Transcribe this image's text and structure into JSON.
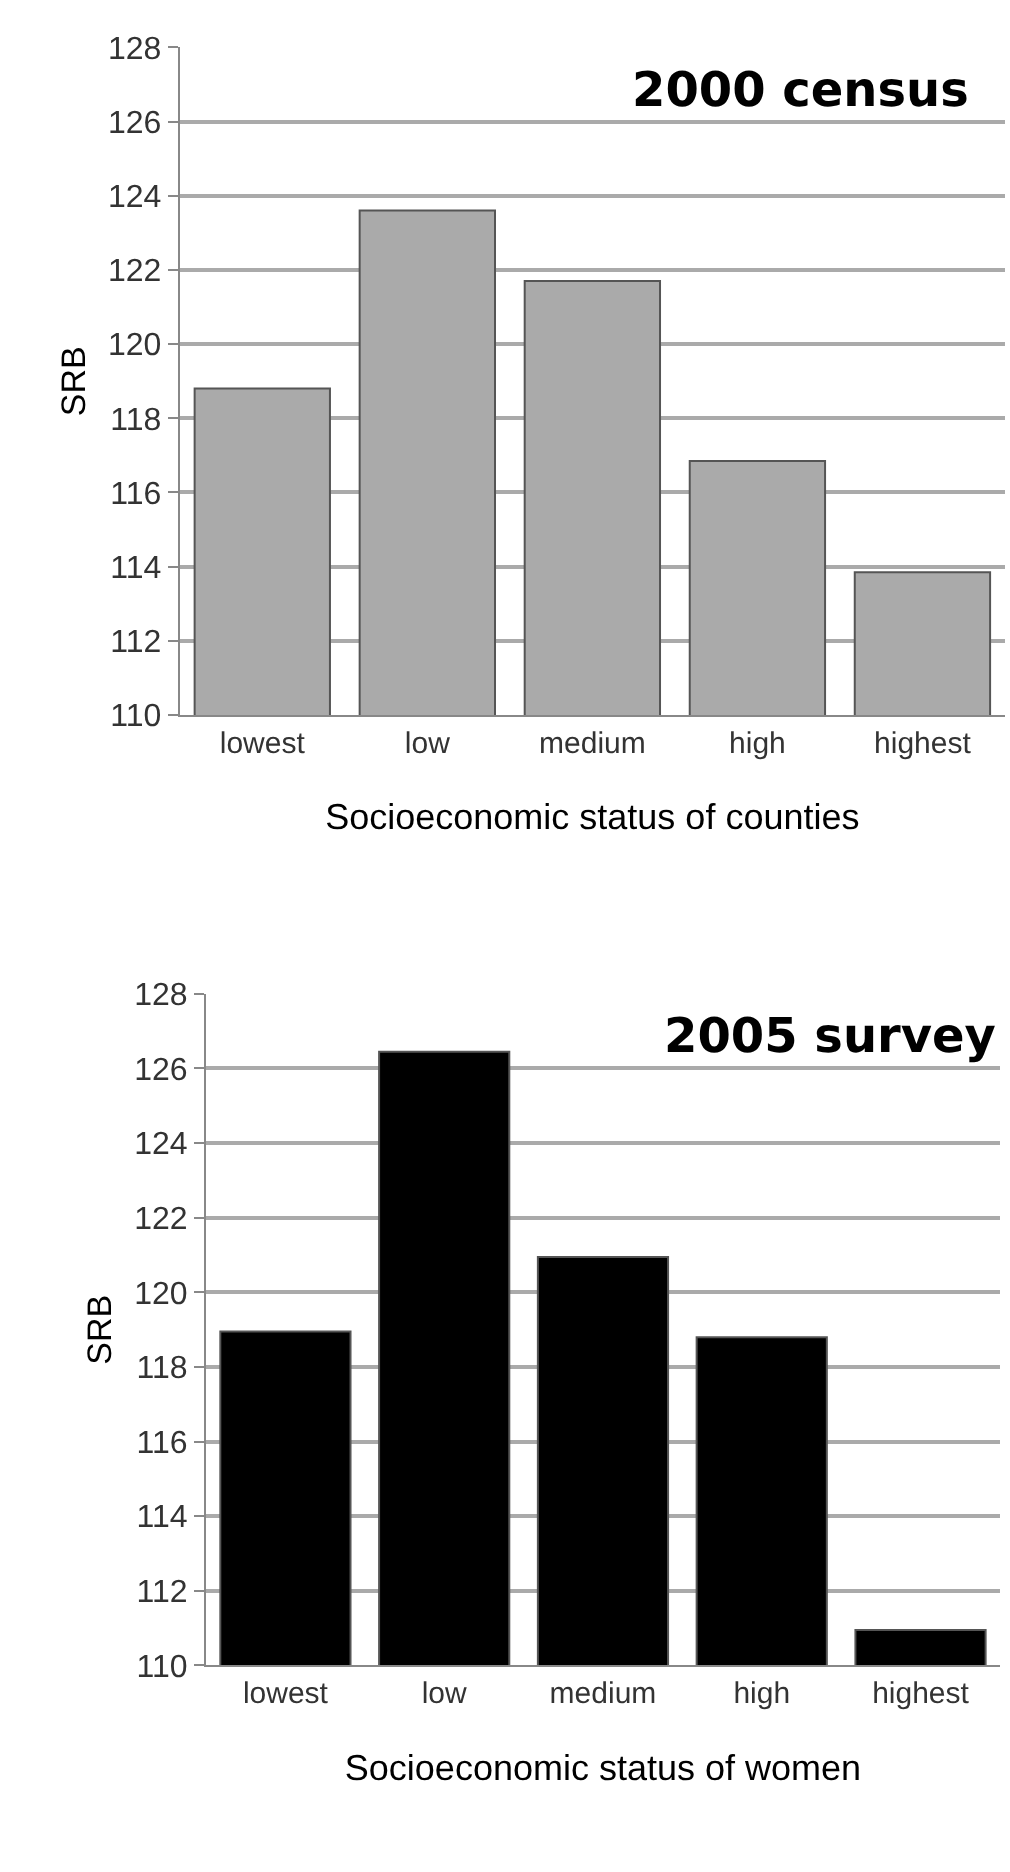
{
  "chart_data": [
    {
      "type": "bar",
      "title": "2000 census",
      "xlabel": "Socioeconomic status of counties",
      "ylabel": "SRB",
      "categories": [
        "lowest",
        "low",
        "medium",
        "high",
        "highest"
      ],
      "values": [
        118.8,
        123.6,
        121.7,
        116.85,
        113.85
      ],
      "color": "#aaaaaa",
      "ylim": [
        110,
        128
      ],
      "yticks": [
        110,
        112,
        114,
        116,
        118,
        120,
        122,
        124,
        126,
        128
      ],
      "grid": "y"
    },
    {
      "type": "bar",
      "title": "2005 survey",
      "xlabel": "Socioeconomic status of women",
      "ylabel": "SRB",
      "categories": [
        "lowest",
        "low",
        "medium",
        "high",
        "highest"
      ],
      "values": [
        118.95,
        126.45,
        120.95,
        118.8,
        110.95
      ],
      "color": "#000000",
      "ylim": [
        110,
        128
      ],
      "yticks": [
        110,
        112,
        114,
        116,
        118,
        120,
        122,
        124,
        126,
        128
      ],
      "grid": "y"
    }
  ]
}
